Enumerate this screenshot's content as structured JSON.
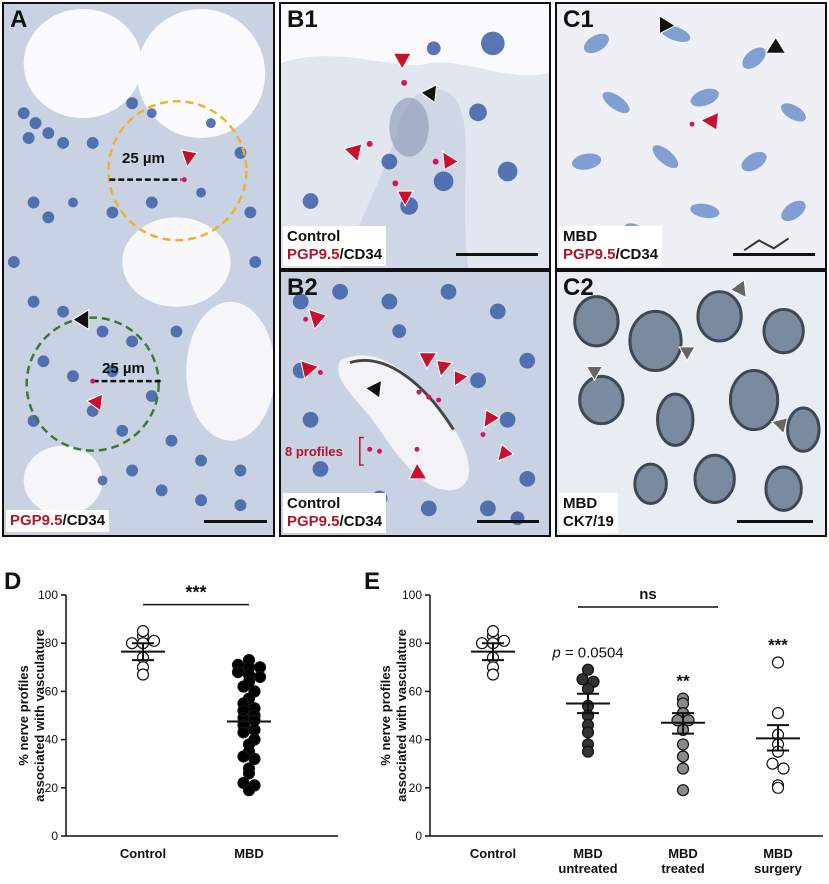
{
  "panels": {
    "A": {
      "letter": "A",
      "marker": "PGP9.5",
      "suffix": "/CD34",
      "dist1": "25 µm",
      "dist2": "25 µm"
    },
    "B1": {
      "letter": "B1",
      "group": "Control",
      "marker": "PGP9.5",
      "suffix": "/CD34"
    },
    "B2": {
      "letter": "B2",
      "group": "Control",
      "marker": "PGP9.5",
      "suffix": "/CD34",
      "profiles": "8 profiles"
    },
    "C1": {
      "letter": "C1",
      "group": "MBD",
      "marker": "PGP9.5",
      "suffix": "/CD34"
    },
    "C2": {
      "letter": "C2",
      "group": "MBD",
      "stain": "CK7/19"
    }
  },
  "colors": {
    "red": "#b0162a",
    "arrow_red": "#c8102e",
    "orange_circle": "#f0b030",
    "green_circle": "#3a7a2a",
    "grey_marker": "#8a8a8a"
  },
  "chart_data": [
    {
      "panel": "D",
      "type": "scatter",
      "ylabel": "% nerve profiles associated with vasculature",
      "ylim": [
        0,
        100
      ],
      "yticks": [
        0,
        20,
        40,
        60,
        80,
        100
      ],
      "categories": [
        "Control",
        "MBD"
      ],
      "significance": "***",
      "series": [
        {
          "category": "Control",
          "fill": "white",
          "mean": 76.5,
          "sem_low": 73,
          "sem_high": 80,
          "values": [
            83,
            80,
            80,
            81,
            85,
            74,
            70,
            67
          ]
        },
        {
          "category": "MBD",
          "fill": "black",
          "mean": 47.5,
          "sem_low": 45,
          "sem_high": 50,
          "values": [
            73,
            71,
            70,
            70,
            68,
            67,
            66,
            64,
            62,
            60,
            57,
            55,
            53,
            52,
            50,
            49,
            48,
            46,
            44,
            43,
            40,
            38,
            35,
            33,
            32,
            28,
            26,
            22,
            21,
            19
          ]
        }
      ]
    },
    {
      "panel": "E",
      "type": "scatter",
      "ylabel": "% nerve profiles associated with vasculature",
      "ylim": [
        0,
        100
      ],
      "yticks": [
        0,
        20,
        40,
        60,
        80,
        100
      ],
      "categories": [
        "Control",
        "MBD untreated",
        "MBD treated",
        "MBD surgery"
      ],
      "category_lines": [
        [
          "Control"
        ],
        [
          "MBD",
          "untreated"
        ],
        [
          "MBD",
          "treated"
        ],
        [
          "MBD",
          "surgery"
        ]
      ],
      "bracket": {
        "from": "MBD untreated",
        "to": "MBD surgery",
        "label": "ns"
      },
      "series": [
        {
          "category": "Control",
          "fill": "white",
          "mean": 76.5,
          "sem_low": 73,
          "sem_high": 80,
          "values": [
            83,
            80,
            80,
            81,
            85,
            74,
            70,
            67
          ],
          "annotation": ""
        },
        {
          "category": "MBD untreated",
          "fill": "#333333",
          "mean": 55,
          "sem_low": 51,
          "sem_high": 59,
          "values": [
            69,
            65,
            64,
            61,
            54,
            50,
            46,
            43,
            38,
            35
          ],
          "annotation_p": "p",
          "annotation": " = 0.0504"
        },
        {
          "category": "MBD treated",
          "fill": "#8a8a8a",
          "mean": 47,
          "sem_low": 42.5,
          "sem_high": 51,
          "values": [
            57,
            55,
            51,
            48,
            48,
            44,
            38,
            33,
            28,
            19
          ],
          "annotation": "**"
        },
        {
          "category": "MBD surgery",
          "fill": "white",
          "mean": 40.5,
          "sem_low": 35.5,
          "sem_high": 46,
          "values": [
            72,
            51,
            42,
            38,
            35,
            30,
            28,
            21,
            20
          ],
          "annotation": "***"
        }
      ]
    }
  ]
}
